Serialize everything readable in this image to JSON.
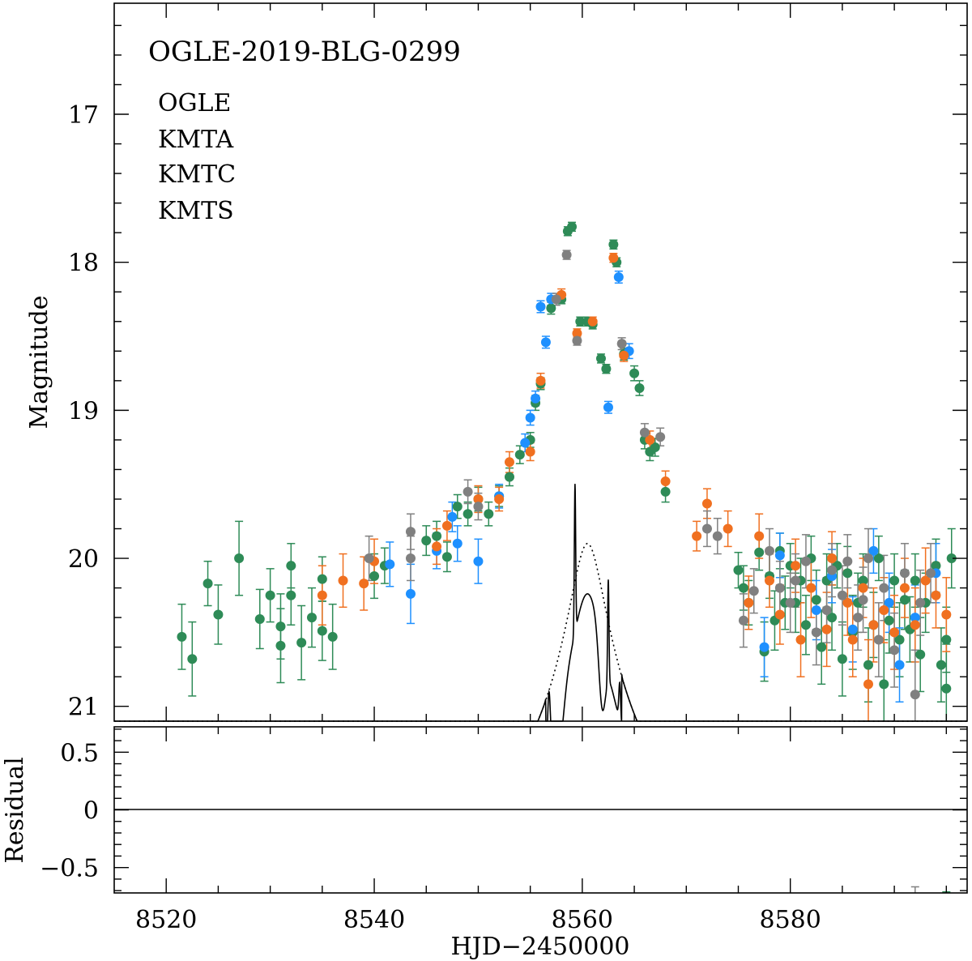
{
  "chart_data": {
    "type": "scatter",
    "title": "OGLE-2019-BLG-0299",
    "xlabel": "HJD−2450000",
    "xlim": [
      8515,
      8597
    ],
    "x_ticks": [
      "8520",
      "8540",
      "8560",
      "8580"
    ],
    "x_tick_values": [
      8520,
      8540,
      8560,
      8580
    ],
    "panels": [
      {
        "name": "light-curve",
        "ylabel": "Magnitude",
        "ylim": [
          21.1,
          16.25
        ],
        "inverted": true,
        "y_ticks": [
          "17",
          "18",
          "19",
          "20",
          "21"
        ],
        "y_tick_values": [
          17,
          18,
          19,
          20,
          21
        ]
      },
      {
        "name": "residual",
        "ylabel": "Residual",
        "ylim": [
          -0.72,
          0.72
        ],
        "y_ticks": [
          "0.5",
          "0",
          "−0.5"
        ],
        "y_tick_values": [
          0.5,
          0,
          -0.5
        ]
      }
    ],
    "legend": [
      {
        "name": "OGLE",
        "color": "#2e8b57"
      },
      {
        "name": "KMTA",
        "color": "#1e90ff"
      },
      {
        "name": "KMTC",
        "color": "#f07020"
      },
      {
        "name": "KMTS",
        "color": "#808080"
      }
    ],
    "model_curves": [
      {
        "name": "binary-lens model",
        "style": "solid"
      },
      {
        "name": "single-lens model",
        "style": "dotted"
      }
    ],
    "series": [
      {
        "name": "OGLE",
        "points": [
          [
            8521.5,
            20.53,
            0.22
          ],
          [
            8522.5,
            20.68,
            0.25
          ],
          [
            8524.0,
            20.17,
            0.15
          ],
          [
            8525.0,
            20.38,
            0.2
          ],
          [
            8527.0,
            20.0,
            0.25
          ],
          [
            8529.0,
            20.41,
            0.2
          ],
          [
            8530.0,
            20.25,
            0.18
          ],
          [
            8531.0,
            20.46,
            0.22
          ],
          [
            8531.0,
            20.59,
            0.25
          ],
          [
            8532.0,
            20.05,
            0.15
          ],
          [
            8532.0,
            20.25,
            0.2
          ],
          [
            8533.0,
            20.57,
            0.25
          ],
          [
            8534.0,
            20.4,
            0.2
          ],
          [
            8535.0,
            20.14,
            0.15
          ],
          [
            8535.0,
            20.49,
            0.2
          ],
          [
            8536.0,
            20.53,
            0.22
          ],
          [
            8540.0,
            20.12,
            0.15
          ],
          [
            8541.0,
            20.05,
            0.12
          ],
          [
            8545.0,
            19.88,
            0.1
          ],
          [
            8546.0,
            19.85,
            0.1
          ],
          [
            8547.0,
            19.99,
            0.1
          ],
          [
            8548.0,
            19.65,
            0.08
          ],
          [
            8549.0,
            19.7,
            0.08
          ],
          [
            8550.0,
            19.6,
            0.08
          ],
          [
            8551.0,
            19.7,
            0.08
          ],
          [
            8552.0,
            19.58,
            0.07
          ],
          [
            8553.0,
            19.45,
            0.06
          ],
          [
            8554.0,
            19.3,
            0.06
          ],
          [
            8555.0,
            19.2,
            0.05
          ],
          [
            8555.5,
            18.95,
            0.05
          ],
          [
            8556.0,
            18.82,
            0.04
          ],
          [
            8557.0,
            18.31,
            0.04
          ],
          [
            8558.0,
            18.25,
            0.03
          ],
          [
            8558.6,
            17.79,
            0.03
          ],
          [
            8559.0,
            17.76,
            0.03
          ],
          [
            8559.8,
            18.4,
            0.03
          ],
          [
            8560.5,
            18.4,
            0.03
          ],
          [
            8561.0,
            18.42,
            0.03
          ],
          [
            8561.8,
            18.65,
            0.03
          ],
          [
            8562.3,
            18.72,
            0.03
          ],
          [
            8563.0,
            17.88,
            0.03
          ],
          [
            8563.3,
            18.0,
            0.03
          ],
          [
            8564.0,
            18.62,
            0.04
          ],
          [
            8565.0,
            18.75,
            0.05
          ],
          [
            8565.5,
            18.85,
            0.05
          ],
          [
            8566.0,
            19.2,
            0.06
          ],
          [
            8566.5,
            19.28,
            0.06
          ],
          [
            8567.0,
            19.25,
            0.06
          ],
          [
            8568.0,
            19.55,
            0.07
          ],
          [
            8575.0,
            20.08,
            0.12
          ],
          [
            8575.5,
            20.2,
            0.15
          ],
          [
            8576.0,
            20.3,
            0.15
          ],
          [
            8577.0,
            19.96,
            0.12
          ],
          [
            8577.5,
            20.63,
            0.2
          ],
          [
            8578.0,
            20.12,
            0.15
          ],
          [
            8578.5,
            20.42,
            0.2
          ],
          [
            8579.0,
            19.95,
            0.12
          ],
          [
            8579.5,
            20.3,
            0.18
          ],
          [
            8580.0,
            20.05,
            0.15
          ],
          [
            8580.5,
            20.3,
            0.2
          ],
          [
            8581.0,
            20.15,
            0.15
          ],
          [
            8581.5,
            20.45,
            0.2
          ],
          [
            8582.0,
            20.0,
            0.15
          ],
          [
            8582.5,
            20.28,
            0.2
          ],
          [
            8583.0,
            20.6,
            0.25
          ],
          [
            8583.5,
            20.15,
            0.18
          ],
          [
            8584.0,
            20.4,
            0.22
          ],
          [
            8584.5,
            20.05,
            0.15
          ],
          [
            8585.0,
            20.68,
            0.25
          ],
          [
            8585.5,
            20.1,
            0.18
          ],
          [
            8586.0,
            20.5,
            0.25
          ],
          [
            8586.5,
            20.3,
            0.2
          ],
          [
            8587.0,
            20.15,
            0.18
          ],
          [
            8587.5,
            20.72,
            0.25
          ],
          [
            8588.0,
            20.45,
            0.22
          ],
          [
            8588.5,
            20.0,
            0.15
          ],
          [
            8589.0,
            20.85,
            0.3
          ],
          [
            8589.5,
            20.42,
            0.22
          ],
          [
            8590.0,
            20.15,
            0.18
          ],
          [
            8590.5,
            20.55,
            0.25
          ],
          [
            8591.0,
            20.28,
            0.2
          ],
          [
            8591.5,
            20.48,
            0.22
          ],
          [
            8592.0,
            20.15,
            0.18
          ],
          [
            8592.5,
            20.65,
            0.25
          ],
          [
            8593.0,
            20.3,
            0.2
          ],
          [
            8594.0,
            20.05,
            0.18
          ],
          [
            8594.5,
            20.72,
            0.25
          ],
          [
            8595.0,
            20.88,
            0.3
          ],
          [
            8595.5,
            20.0,
            0.2
          ],
          [
            8595.0,
            20.55,
            0.22
          ]
        ]
      },
      {
        "name": "KMTA",
        "points": [
          [
            8541.5,
            20.04,
            0.15
          ],
          [
            8543.5,
            20.24,
            0.2
          ],
          [
            8546.0,
            19.95,
            0.12
          ],
          [
            8547.5,
            19.72,
            0.1
          ],
          [
            8548.0,
            19.9,
            0.12
          ],
          [
            8550.0,
            20.02,
            0.15
          ],
          [
            8552.0,
            19.58,
            0.08
          ],
          [
            8554.5,
            19.22,
            0.06
          ],
          [
            8555.0,
            19.05,
            0.05
          ],
          [
            8555.5,
            18.92,
            0.05
          ],
          [
            8556.0,
            18.3,
            0.04
          ],
          [
            8556.5,
            18.54,
            0.04
          ],
          [
            8557.0,
            18.25,
            0.04
          ],
          [
            8562.5,
            18.98,
            0.04
          ],
          [
            8563.5,
            18.1,
            0.04
          ],
          [
            8564.5,
            18.6,
            0.05
          ],
          [
            8577.5,
            20.6,
            0.2
          ],
          [
            8579.0,
            19.98,
            0.15
          ],
          [
            8582.5,
            20.35,
            0.2
          ],
          [
            8584.0,
            20.12,
            0.18
          ],
          [
            8586.0,
            20.48,
            0.22
          ],
          [
            8588.0,
            19.95,
            0.15
          ],
          [
            8589.5,
            20.3,
            0.2
          ],
          [
            8590.5,
            20.72,
            0.25
          ],
          [
            8592.0,
            20.4,
            0.22
          ],
          [
            8594.0,
            20.1,
            0.2
          ]
        ]
      },
      {
        "name": "KMTC",
        "points": [
          [
            8535.0,
            20.25,
            0.2
          ],
          [
            8537.0,
            20.15,
            0.18
          ],
          [
            8539.0,
            20.17,
            0.18
          ],
          [
            8540.0,
            20.02,
            0.15
          ],
          [
            8546.0,
            19.92,
            0.12
          ],
          [
            8547.0,
            19.78,
            0.1
          ],
          [
            8550.0,
            19.6,
            0.09
          ],
          [
            8552.0,
            19.6,
            0.08
          ],
          [
            8553.0,
            19.35,
            0.07
          ],
          [
            8555.0,
            19.28,
            0.06
          ],
          [
            8556.0,
            18.8,
            0.05
          ],
          [
            8558.0,
            18.22,
            0.04
          ],
          [
            8559.5,
            18.48,
            0.03
          ],
          [
            8561.0,
            18.4,
            0.03
          ],
          [
            8563.0,
            17.97,
            0.03
          ],
          [
            8564.0,
            18.63,
            0.04
          ],
          [
            8566.5,
            19.2,
            0.06
          ],
          [
            8568.0,
            19.48,
            0.07
          ],
          [
            8571.0,
            19.85,
            0.1
          ],
          [
            8572.0,
            19.63,
            0.1
          ],
          [
            8574.0,
            19.8,
            0.12
          ],
          [
            8576.0,
            20.3,
            0.18
          ],
          [
            8577.0,
            19.85,
            0.15
          ],
          [
            8578.0,
            20.15,
            0.18
          ],
          [
            8579.0,
            20.38,
            0.2
          ],
          [
            8580.5,
            20.05,
            0.18
          ],
          [
            8581.0,
            20.55,
            0.25
          ],
          [
            8582.0,
            20.2,
            0.2
          ],
          [
            8583.5,
            20.48,
            0.25
          ],
          [
            8584.0,
            20.0,
            0.18
          ],
          [
            8585.5,
            20.3,
            0.22
          ],
          [
            8586.0,
            20.55,
            0.25
          ],
          [
            8587.0,
            20.2,
            0.2
          ],
          [
            8587.5,
            20.85,
            0.3
          ],
          [
            8588.0,
            20.45,
            0.25
          ],
          [
            8589.0,
            20.35,
            0.22
          ],
          [
            8590.0,
            20.5,
            0.25
          ],
          [
            8591.0,
            20.2,
            0.2
          ],
          [
            8592.0,
            20.45,
            0.25
          ],
          [
            8593.0,
            20.15,
            0.22
          ],
          [
            8594.0,
            20.25,
            0.22
          ],
          [
            8595.0,
            20.38,
            0.25
          ]
        ]
      },
      {
        "name": "KMTS",
        "points": [
          [
            8539.5,
            20.0,
            0.15
          ],
          [
            8543.5,
            19.82,
            0.12
          ],
          [
            8543.5,
            20.0,
            0.15
          ],
          [
            8549.0,
            19.55,
            0.08
          ],
          [
            8550.0,
            19.65,
            0.09
          ],
          [
            8557.5,
            18.25,
            0.04
          ],
          [
            8558.5,
            17.95,
            0.03
          ],
          [
            8559.5,
            18.53,
            0.03
          ],
          [
            8563.8,
            18.55,
            0.04
          ],
          [
            8566.0,
            19.15,
            0.06
          ],
          [
            8567.5,
            19.18,
            0.06
          ],
          [
            8572.0,
            19.8,
            0.12
          ],
          [
            8573.0,
            19.85,
            0.12
          ],
          [
            8575.5,
            20.42,
            0.18
          ],
          [
            8576.5,
            20.22,
            0.15
          ],
          [
            8578.0,
            19.95,
            0.15
          ],
          [
            8579.0,
            20.2,
            0.18
          ],
          [
            8580.0,
            20.3,
            0.2
          ],
          [
            8580.5,
            20.15,
            0.18
          ],
          [
            8581.5,
            20.02,
            0.18
          ],
          [
            8582.5,
            20.5,
            0.22
          ],
          [
            8583.5,
            20.35,
            0.22
          ],
          [
            8584.0,
            20.08,
            0.18
          ],
          [
            8585.0,
            20.25,
            0.2
          ],
          [
            8585.5,
            20.02,
            0.18
          ],
          [
            8586.5,
            20.4,
            0.22
          ],
          [
            8587.0,
            20.28,
            0.22
          ],
          [
            8587.5,
            20.0,
            0.2
          ],
          [
            8588.5,
            20.55,
            0.25
          ],
          [
            8589.0,
            20.2,
            0.22
          ],
          [
            8590.0,
            20.62,
            0.25
          ],
          [
            8591.0,
            20.1,
            0.2
          ],
          [
            8592.0,
            20.92,
            0.3
          ],
          [
            8592.5,
            20.3,
            0.22
          ],
          [
            8593.5,
            20.1,
            0.2
          ]
        ]
      }
    ]
  }
}
